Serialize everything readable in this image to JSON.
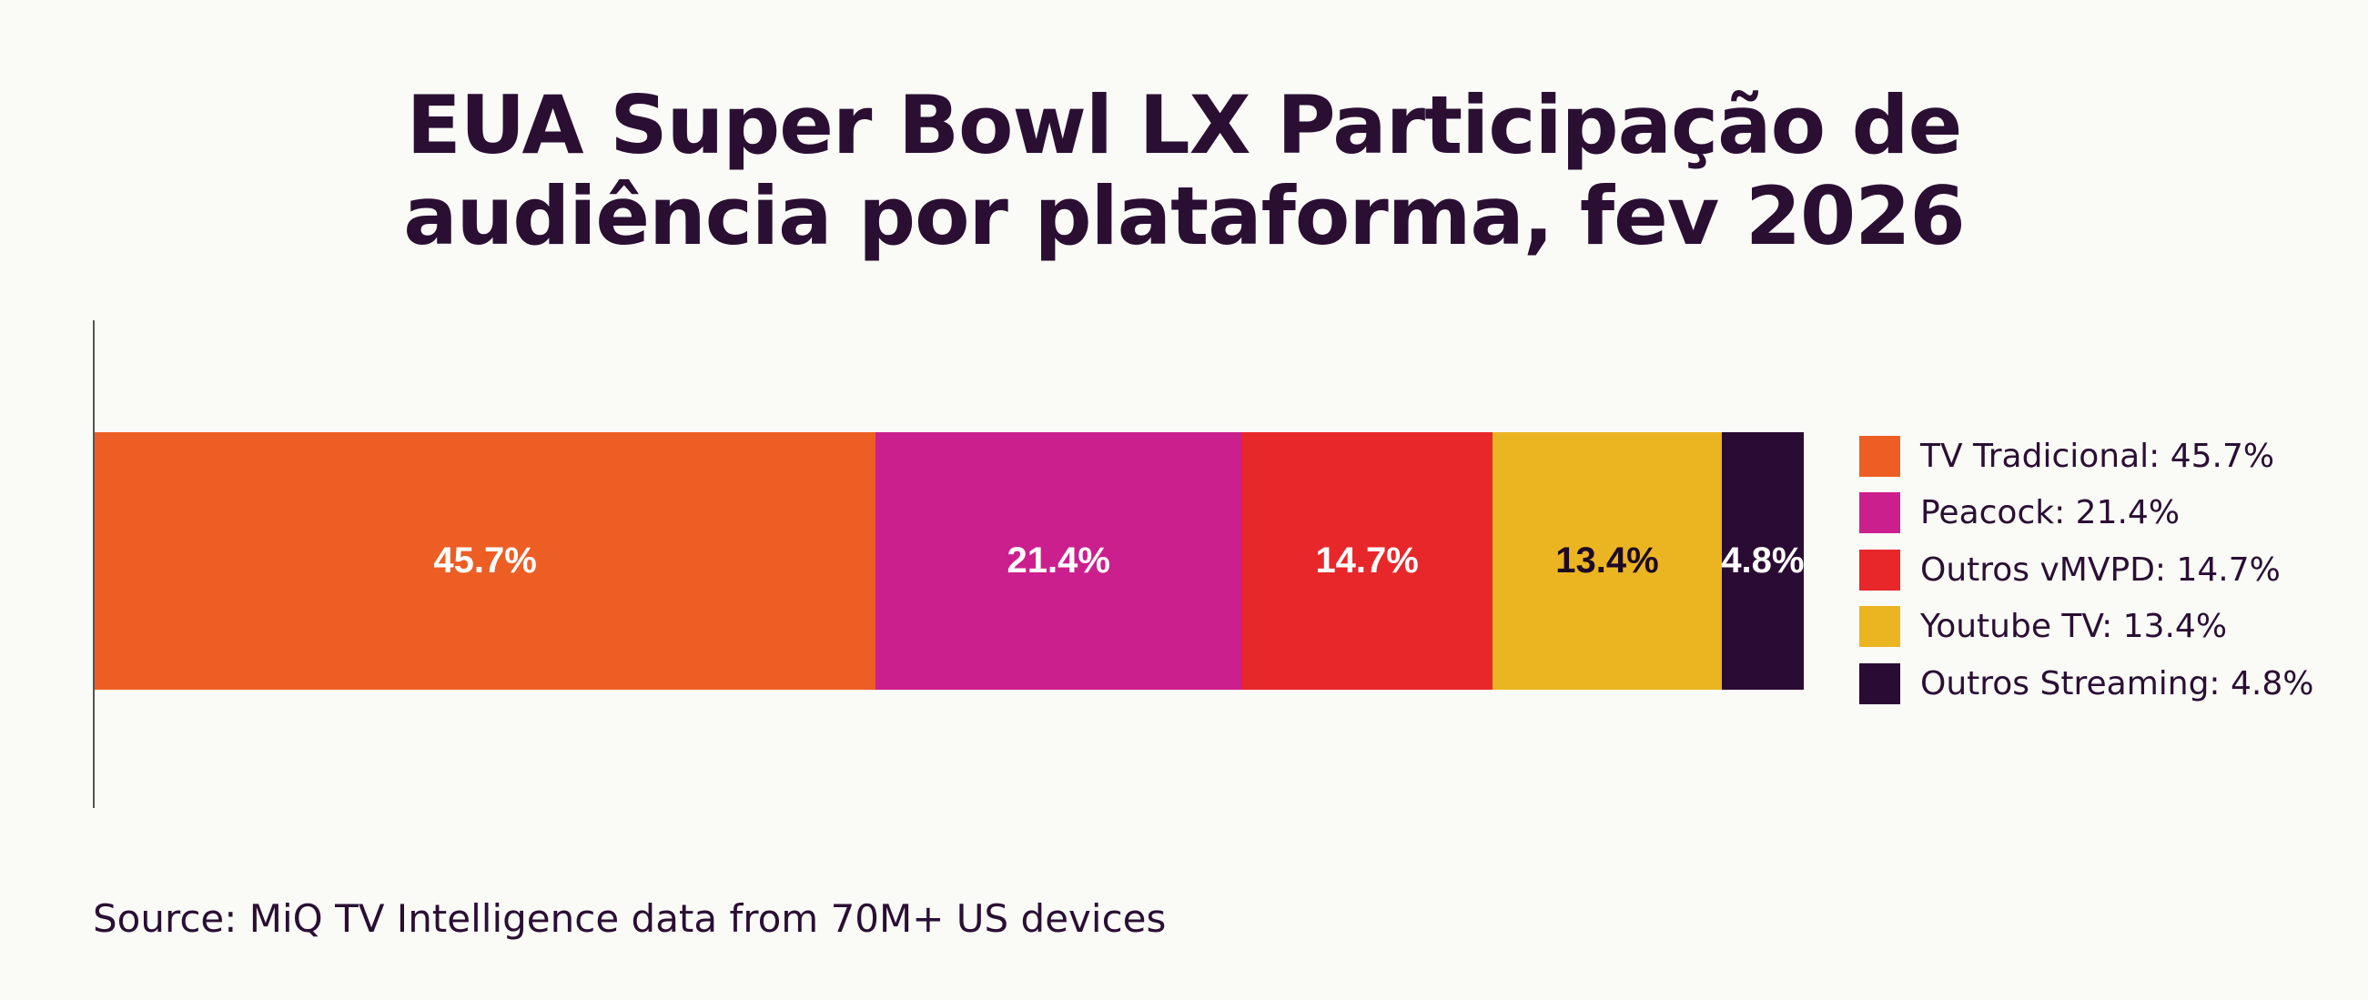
{
  "chart_data": {
    "type": "bar",
    "orientation": "horizontal-stacked",
    "title_lines": [
      "EUA Super Bowl LX Participação de",
      "audiência por plataforma, fev 2026"
    ],
    "categories": [
      "TV Tradicional",
      "Peacock",
      "Outros vMVPD",
      "Youtube TV",
      "Outros Streaming"
    ],
    "values": [
      45.7,
      21.4,
      14.7,
      13.4,
      4.8
    ],
    "data_labels": [
      "45.7%",
      "21.4%",
      "14.7%",
      "13.4%",
      "4.8%"
    ],
    "label_colors": [
      "#ffffff",
      "#ffffff",
      "#ffffff",
      "#1e0a24",
      "#ffffff"
    ],
    "colors": [
      "#ec5e24",
      "#cc1f8e",
      "#e8272a",
      "#ebb522",
      "#2a0b33"
    ],
    "legend": [
      "TV Tradicional: 45.7%",
      "Peacock: 21.4%",
      "Outros vMVPD: 14.7%",
      "Youtube TV: 13.4%",
      "Outros Streaming: 4.8%"
    ],
    "legend_position": "right",
    "xlim": [
      0,
      100
    ],
    "grid": false
  },
  "source": "Source: MiQ TV Intelligence data from 70M+ US devices"
}
